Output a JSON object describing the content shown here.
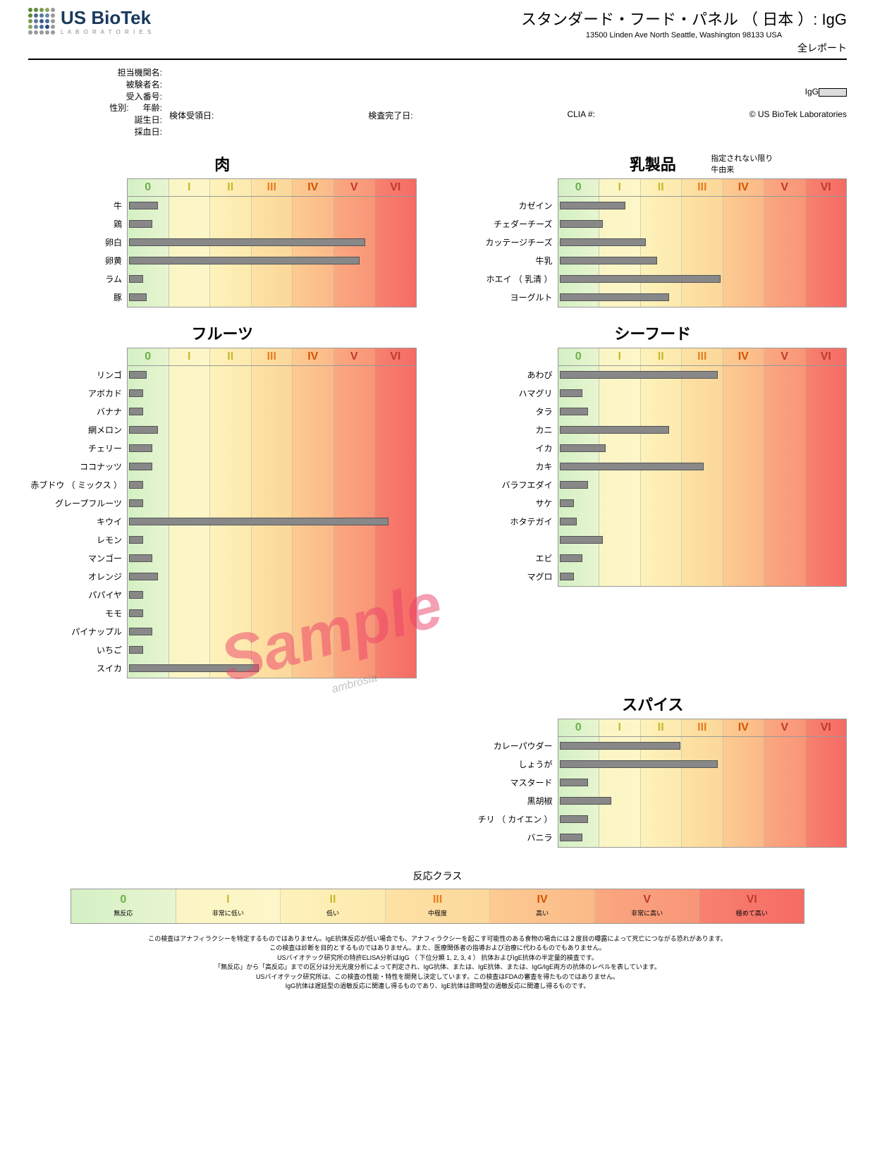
{
  "logo": {
    "name": "US BioTek",
    "sub": "L A B O R A T O R I E S"
  },
  "header": {
    "title": "スタンダード・フード・パネル （ 日本 ）: IgG",
    "address": "13500 Linden Ave North Seattle, Washington 98133 USA",
    "subtitle": "全レポート"
  },
  "meta": {
    "labels": {
      "facility": "担当機関名:",
      "subject": "被験者名:",
      "accession": "受入番号:",
      "sex": "性別:",
      "age": "年齢:",
      "dob": "誕生日:",
      "collection": "採血日:",
      "received": "検体受領日:",
      "completed": "検査完了日:",
      "clia": "CLIA #:",
      "copyright": "© US BioTek Laboratories",
      "igg": "IgG"
    }
  },
  "scale": {
    "romans": [
      "0",
      "I",
      "II",
      "III",
      "IV",
      "V",
      "VI"
    ],
    "colors": [
      "#6ab04c",
      "#c8b82e",
      "#c8b82e",
      "#e67e22",
      "#d35400",
      "#c0392b",
      "#c0392b"
    ],
    "bg_gradient": [
      "linear-gradient(to right, #d4f0c4, #e8f5d0)",
      "linear-gradient(to right, #fbf5c5, #fdf6c8)",
      "linear-gradient(to right, #fdf2bb, #fde9ad)",
      "linear-gradient(to right, #fde2a5, #fcd79a)",
      "linear-gradient(to right, #fccb92, #fbb988)",
      "linear-gradient(to right, #faa880, #f99578)",
      "linear-gradient(to right, #f7826f, #f56b65)"
    ]
  },
  "sections": [
    {
      "title": "肉",
      "note": null,
      "items": [
        {
          "label": "牛",
          "val": 0.1
        },
        {
          "label": "鶏",
          "val": 0.08
        },
        {
          "label": "卵白",
          "val": 0.82
        },
        {
          "label": "卵黄",
          "val": 0.8
        },
        {
          "label": "ラム",
          "val": 0.05
        },
        {
          "label": "豚",
          "val": 0.06
        }
      ]
    },
    {
      "title": "乳製品",
      "note": "指定されない限り\n牛由来",
      "items": [
        {
          "label": "カゼイン",
          "val": 0.23
        },
        {
          "label": "チェダーチーズ",
          "val": 0.15
        },
        {
          "label": "カッテージチーズ",
          "val": 0.3
        },
        {
          "label": "牛乳",
          "val": 0.34
        },
        {
          "label": "ホエイ （ 乳清 ）",
          "val": 0.56
        },
        {
          "label": "ヨーグルト",
          "val": 0.38
        }
      ]
    },
    {
      "title": "フルーツ",
      "note": null,
      "items": [
        {
          "label": "リンゴ",
          "val": 0.06
        },
        {
          "label": "アボカド",
          "val": 0.05
        },
        {
          "label": "バナナ",
          "val": 0.05
        },
        {
          "label": "網メロン",
          "val": 0.1
        },
        {
          "label": "チェリー",
          "val": 0.08
        },
        {
          "label": "ココナッツ",
          "val": 0.08
        },
        {
          "label": "赤ブドウ （ ミックス ）",
          "val": 0.05
        },
        {
          "label": "グレープフルーツ",
          "val": 0.05
        },
        {
          "label": "キウイ",
          "val": 0.9
        },
        {
          "label": "レモン",
          "val": 0.05
        },
        {
          "label": "マンゴー",
          "val": 0.08
        },
        {
          "label": "オレンジ",
          "val": 0.1
        },
        {
          "label": "パパイヤ",
          "val": 0.05
        },
        {
          "label": "モモ",
          "val": 0.05
        },
        {
          "label": "パイナップル",
          "val": 0.08
        },
        {
          "label": "いちご",
          "val": 0.05
        },
        {
          "label": "スイカ",
          "val": 0.45
        }
      ]
    },
    {
      "title": "シーフード",
      "note": null,
      "items": [
        {
          "label": "あわび",
          "val": 0.55
        },
        {
          "label": "ハマグリ",
          "val": 0.08
        },
        {
          "label": "タラ",
          "val": 0.1
        },
        {
          "label": "カニ",
          "val": 0.38
        },
        {
          "label": "イカ",
          "val": 0.16
        },
        {
          "label": "カキ",
          "val": 0.5
        },
        {
          "label": "バラフエダイ",
          "val": 0.1
        },
        {
          "label": "サケ",
          "val": 0.05
        },
        {
          "label": "ホタテガイ",
          "val": 0.06
        },
        {
          "label": "",
          "val": 0.15
        },
        {
          "label": "エビ",
          "val": 0.08
        },
        {
          "label": "マグロ",
          "val": 0.05
        }
      ]
    },
    null,
    {
      "title": "スパイス",
      "note": null,
      "items": [
        {
          "label": "カレーパウダー",
          "val": 0.42
        },
        {
          "label": "しょうが",
          "val": 0.55
        },
        {
          "label": "マスタード",
          "val": 0.1
        },
        {
          "label": "黒胡椒",
          "val": 0.18
        },
        {
          "label": "チリ （ カイエン ）",
          "val": 0.1
        },
        {
          "label": "バニラ",
          "val": 0.08
        }
      ]
    }
  ],
  "legend": {
    "title": "反応クラス",
    "labels": [
      "無反応",
      "非常に低い",
      "低い",
      "中程度",
      "高い",
      "非常に高い",
      "極めて高い"
    ]
  },
  "disclaimers": [
    "この検査はアナフィラクシーを特定するものではありません。IgE抗体反応が低い場合でも、アナフィラクシーを起こす可能性のある食物の場合には２度目の曝露によって死亡につながる恐れがあります。",
    "この検査は診断を目的とするものではありません。また、医療関係者の指導および治療に代わるものでもありません。",
    "USバイオテック研究所の特許ELISA分析はIgG （ 下位分類  1, 2, 3, 4 ）  抗体およびIgE抗体の半定量的検査です。",
    "「無反応」から「高反応」までの区分は分光光度分析によって判定され、IgG抗体、または、IgE抗体、または、IgG/IgE両方の抗体のレベルを表しています。",
    "USバイオテック研究所は、この検査の性能・特性を開発し決定しています。この検査はFDAの審査を得たものではありません。",
    "IgG抗体は遅延型の過敏反応に関連し得るものであり、IgE抗体は即時型の過敏反応に関連し得るものです。"
  ],
  "watermark": "Sample",
  "watermark2": "ambrosia",
  "logo_colors": [
    "#5a8a3a",
    "#5a8a3a",
    "#7a9a4a",
    "#8aa85a",
    "#999999",
    "#5a8a3a",
    "#4a6a8a",
    "#5a7a9a",
    "#6a8aaa",
    "#999999",
    "#7a9a4a",
    "#5a7a9a",
    "#3a5a8a",
    "#4a6a9a",
    "#999999",
    "#8aa85a",
    "#6a8aaa",
    "#4a6a9a",
    "#2a4a7a",
    "#999999",
    "#999999",
    "#999999",
    "#999999",
    "#999999",
    "#999999"
  ]
}
